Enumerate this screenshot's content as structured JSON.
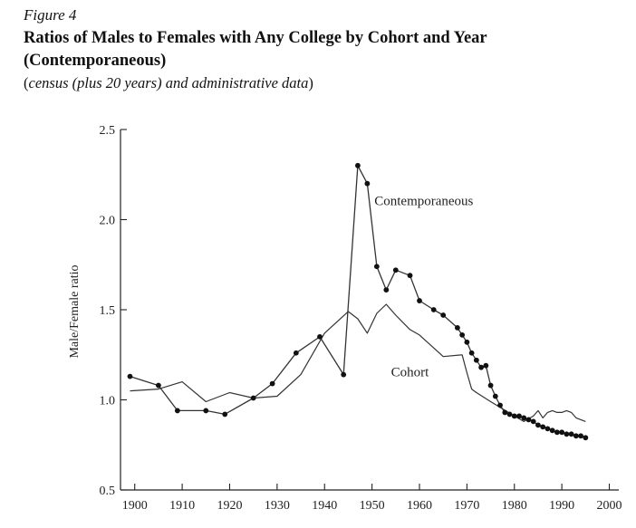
{
  "figure": {
    "label": "Figure 4",
    "title_line1": "Ratios of Males to Females with Any College by Cohort and Year",
    "title_line2": "(Contemporaneous)",
    "subtitle_open": "(",
    "subtitle_italic": "census (plus 20 years) and administrative data",
    "subtitle_close": ")"
  },
  "chart_data": {
    "type": "line",
    "title": "Ratios of Males to Females with Any College by Cohort and Year (Contemporaneous)",
    "xlabel": "",
    "ylabel": "Male/Female ratio",
    "xlim": [
      1897,
      2002
    ],
    "ylim": [
      0.5,
      2.5
    ],
    "xticks": [
      1900,
      1910,
      1920,
      1930,
      1940,
      1950,
      1960,
      1970,
      1980,
      1990,
      2000
    ],
    "yticks": [
      0.5,
      1.0,
      1.5,
      2.0,
      2.5
    ],
    "ytick_labels": [
      "0.5",
      "1.0",
      "1.5",
      "2.0",
      "2.5"
    ],
    "grid": false,
    "legend": "none",
    "series": [
      {
        "name": "Contemporaneous",
        "marker": "circle",
        "x": [
          1899,
          1905,
          1909,
          1915,
          1919,
          1925,
          1929,
          1934,
          1939,
          1944,
          1947,
          1949,
          1951,
          1953,
          1955,
          1958,
          1960,
          1963,
          1965,
          1968,
          1969,
          1970,
          1971,
          1972,
          1973,
          1974,
          1975,
          1976,
          1977,
          1978,
          1979,
          1980,
          1981,
          1982,
          1983,
          1984,
          1985,
          1986,
          1987,
          1988,
          1989,
          1990,
          1991,
          1992,
          1993,
          1994,
          1995
        ],
        "y": [
          1.13,
          1.08,
          0.94,
          0.94,
          0.92,
          1.01,
          1.09,
          1.26,
          1.35,
          1.14,
          2.3,
          2.2,
          1.74,
          1.61,
          1.72,
          1.69,
          1.55,
          1.5,
          1.47,
          1.4,
          1.36,
          1.32,
          1.26,
          1.22,
          1.18,
          1.19,
          1.08,
          1.02,
          0.97,
          0.93,
          0.92,
          0.91,
          0.91,
          0.9,
          0.89,
          0.88,
          0.86,
          0.85,
          0.84,
          0.83,
          0.82,
          0.82,
          0.81,
          0.81,
          0.8,
          0.8,
          0.79
        ]
      },
      {
        "name": "Cohort",
        "marker": "none",
        "x": [
          1899,
          1905,
          1910,
          1915,
          1920,
          1925,
          1930,
          1935,
          1940,
          1945,
          1947,
          1949,
          1951,
          1953,
          1955,
          1958,
          1960,
          1965,
          1969,
          1970,
          1971,
          1972,
          1975,
          1980,
          1982,
          1984,
          1985,
          1986,
          1987,
          1988,
          1989,
          1990,
          1991,
          1992,
          1993,
          1994,
          1995
        ],
        "y": [
          1.05,
          1.06,
          1.1,
          0.99,
          1.04,
          1.01,
          1.02,
          1.14,
          1.37,
          1.49,
          1.45,
          1.37,
          1.48,
          1.53,
          1.47,
          1.39,
          1.36,
          1.24,
          1.25,
          1.15,
          1.06,
          1.04,
          0.99,
          0.91,
          0.88,
          0.91,
          0.94,
          0.9,
          0.93,
          0.94,
          0.93,
          0.93,
          0.94,
          0.93,
          0.9,
          0.89,
          0.88
        ]
      }
    ],
    "annotations": [
      {
        "text": "Contemporaneous",
        "x": 1950.5,
        "y": 2.08
      },
      {
        "text": "Cohort",
        "x": 1954,
        "y": 1.13
      }
    ]
  }
}
